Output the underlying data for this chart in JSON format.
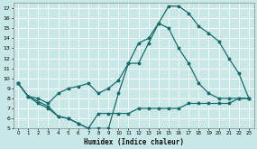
{
  "xlabel": "Humidex (Indice chaleur)",
  "bg_color": "#c8e8e8",
  "grid_color": "#b0d4d4",
  "line_color": "#1a6b6b",
  "xlim": [
    -0.5,
    23.5
  ],
  "ylim": [
    5,
    17.5
  ],
  "xticks": [
    0,
    1,
    2,
    3,
    4,
    5,
    6,
    7,
    8,
    9,
    10,
    11,
    12,
    13,
    14,
    15,
    16,
    17,
    18,
    19,
    20,
    21,
    22,
    23
  ],
  "yticks": [
    5,
    6,
    7,
    8,
    9,
    10,
    11,
    12,
    13,
    14,
    15,
    16,
    17
  ],
  "line1_x": [
    0,
    1,
    3,
    4,
    5,
    6,
    7,
    8,
    9,
    10,
    11,
    12,
    13,
    14,
    15,
    16,
    17,
    18,
    19,
    20,
    21,
    22,
    23
  ],
  "line1_y": [
    9.5,
    8.2,
    7.2,
    6.2,
    6.0,
    5.5,
    5.0,
    5.0,
    5.0,
    8.5,
    11.5,
    13.5,
    14.0,
    15.5,
    17.2,
    17.2,
    16.5,
    15.2,
    14.5,
    13.7,
    12.0,
    10.5,
    8.0
  ],
  "line2_x": [
    0,
    1,
    2,
    3,
    4,
    5,
    6,
    7,
    8,
    9,
    10,
    11,
    12,
    13,
    14,
    15,
    16,
    17,
    18,
    19,
    20,
    21,
    22,
    23
  ],
  "line2_y": [
    9.5,
    8.2,
    8.0,
    7.5,
    8.5,
    9.0,
    9.2,
    9.5,
    8.5,
    9.0,
    9.8,
    11.5,
    11.5,
    13.5,
    15.5,
    15.0,
    13.0,
    11.5,
    9.5,
    8.5,
    8.0,
    8.0,
    8.0,
    8.0
  ],
  "line3_x": [
    0,
    1,
    2,
    3,
    4,
    5,
    6,
    7,
    8,
    9,
    10,
    11,
    12,
    13,
    14,
    15,
    16,
    17,
    18,
    19,
    20,
    21,
    22,
    23
  ],
  "line3_y": [
    9.5,
    8.2,
    7.5,
    7.0,
    6.2,
    6.0,
    5.5,
    5.0,
    6.5,
    6.5,
    6.5,
    6.5,
    7.0,
    7.0,
    7.0,
    7.0,
    7.0,
    7.5,
    7.5,
    7.5,
    7.5,
    7.5,
    8.0,
    8.0
  ]
}
